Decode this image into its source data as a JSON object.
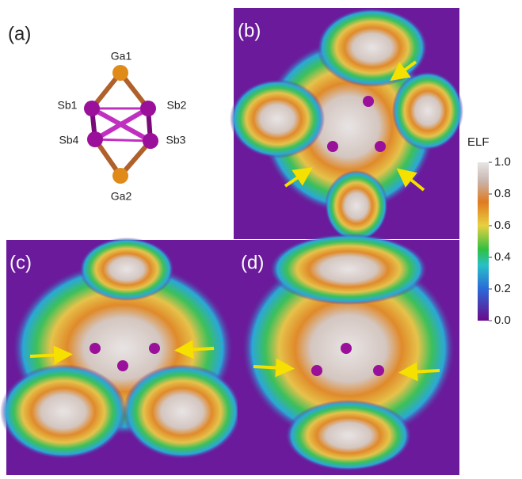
{
  "panels": [
    "(a)",
    "(b)",
    "(c)",
    "(d)"
  ],
  "atoms": [
    "Ga1",
    "Sb1",
    "Sb2",
    "Sb4",
    "Sb3",
    "Ga2"
  ],
  "colorbar": {
    "title": "ELF",
    "lim": [
      0,
      1
    ],
    "ticks": [
      {
        "value": 0,
        "label": "0.0"
      },
      {
        "value": 0.2,
        "label": "0.2"
      },
      {
        "value": 0.4,
        "label": "0.4"
      },
      {
        "value": 0.6,
        "label": "0.6"
      },
      {
        "value": 0.8,
        "label": "0.8"
      },
      {
        "value": 1,
        "label": "1.0"
      }
    ]
  }
}
